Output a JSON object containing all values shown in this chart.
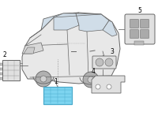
{
  "bg_color": "#ffffff",
  "car_body_color": "#e8e8e8",
  "car_outline_color": "#666666",
  "window_color": "#d0dde8",
  "highlight_color": "#7dd4f0",
  "highlight_edge": "#4aabcc",
  "part_color": "#e0e0e0",
  "part_edge": "#666666",
  "line_color": "#555555",
  "label_color": "#000000",
  "label_fontsize": 5.5,
  "number_fontsize": 5.5
}
